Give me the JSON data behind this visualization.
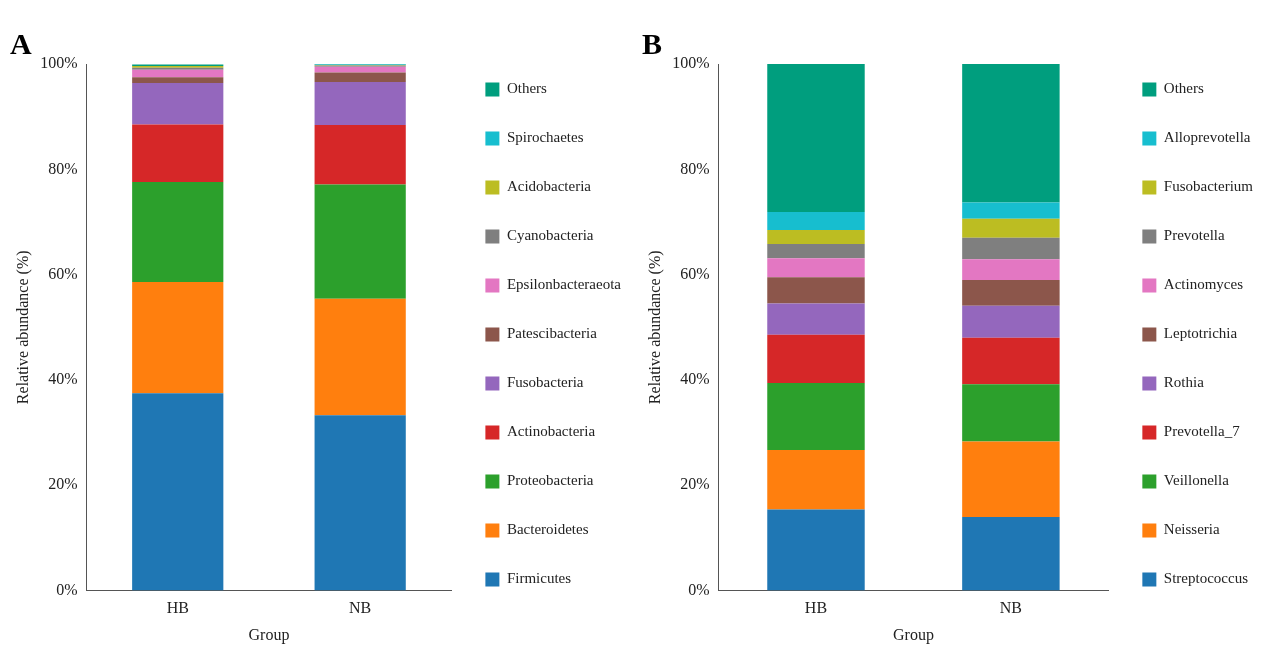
{
  "chart_data": [
    {
      "type": "bar",
      "title": "A",
      "stacked": true,
      "categories": [
        "HB",
        "NB"
      ],
      "xlabel": "Group",
      "ylabel": "Relative abundance (%)",
      "ylim": [
        0,
        100
      ],
      "yticks": [
        {
          "value": 0,
          "label": "0%"
        },
        {
          "value": 20,
          "label": "20%"
        },
        {
          "value": 40,
          "label": "40%"
        },
        {
          "value": 60,
          "label": "60%"
        },
        {
          "value": 80,
          "label": "80%"
        },
        {
          "value": 100,
          "label": "100%"
        }
      ],
      "grid": false,
      "legend": "right",
      "series": [
        {
          "name": "Firmicutes",
          "color": "#1f77b4",
          "values": [
            37.5,
            33.3
          ]
        },
        {
          "name": "Bacteroidetes",
          "color": "#ff7f0e",
          "values": [
            21.1,
            22.1
          ]
        },
        {
          "name": "Proteobacteria",
          "color": "#2ca02c",
          "values": [
            19.0,
            21.7
          ]
        },
        {
          "name": "Actinobacteria",
          "color": "#d62728",
          "values": [
            10.9,
            11.3
          ]
        },
        {
          "name": "Fusobacteria",
          "color": "#9467bd",
          "values": [
            7.9,
            8.2
          ]
        },
        {
          "name": "Patescibacteria",
          "color": "#8c564b",
          "values": [
            1.1,
            1.8
          ]
        },
        {
          "name": "Epsilonbacteraeota",
          "color": "#e377c2",
          "values": [
            1.4,
            1.1
          ]
        },
        {
          "name": "Cyanobacteria",
          "color": "#7f7f7f",
          "values": [
            0.4,
            0.2
          ]
        },
        {
          "name": "Acidobacteria",
          "color": "#bcbd22",
          "values": [
            0.3,
            0.1
          ]
        },
        {
          "name": "Spirochaetes",
          "color": "#17becf",
          "values": [
            null,
            0.1
          ]
        },
        {
          "name": "Others",
          "color": "#009e7e",
          "values": [
            0.3,
            0.1
          ]
        }
      ]
    },
    {
      "type": "bar",
      "title": "B",
      "stacked": true,
      "categories": [
        "HB",
        "NB"
      ],
      "xlabel": "Group",
      "ylabel": "Relative abundance (%)",
      "ylim": [
        0,
        100
      ],
      "yticks": [
        {
          "value": 0,
          "label": "0%"
        },
        {
          "value": 20,
          "label": "20%"
        },
        {
          "value": 40,
          "label": "40%"
        },
        {
          "value": 60,
          "label": "60%"
        },
        {
          "value": 80,
          "label": "80%"
        },
        {
          "value": 100,
          "label": "100%"
        }
      ],
      "grid": false,
      "legend": "right",
      "series": [
        {
          "name": "Streptococcus",
          "color": "#1f77b4",
          "values": [
            15.4,
            14.0
          ]
        },
        {
          "name": "Neisseria",
          "color": "#ff7f0e",
          "values": [
            11.3,
            14.3
          ]
        },
        {
          "name": "Veillonella",
          "color": "#2ca02c",
          "values": [
            12.7,
            10.9
          ]
        },
        {
          "name": "Prevotella_7",
          "color": "#d62728",
          "values": [
            9.2,
            8.8
          ]
        },
        {
          "name": "Rothia",
          "color": "#9467bd",
          "values": [
            5.9,
            6.1
          ]
        },
        {
          "name": "Leptotrichia",
          "color": "#8c564b",
          "values": [
            5.0,
            4.9
          ]
        },
        {
          "name": "Actinomyces",
          "color": "#e377c2",
          "values": [
            3.6,
            3.9
          ]
        },
        {
          "name": "Prevotella",
          "color": "#7f7f7f",
          "values": [
            2.7,
            4.1
          ]
        },
        {
          "name": "Fusobacterium",
          "color": "#bcbd22",
          "values": [
            2.7,
            3.6
          ]
        },
        {
          "name": "Alloprevotella",
          "color": "#17becf",
          "values": [
            3.4,
            3.1
          ]
        },
        {
          "name": "Others",
          "color": "#009e7e",
          "values": [
            28.1,
            26.3
          ]
        }
      ]
    }
  ]
}
